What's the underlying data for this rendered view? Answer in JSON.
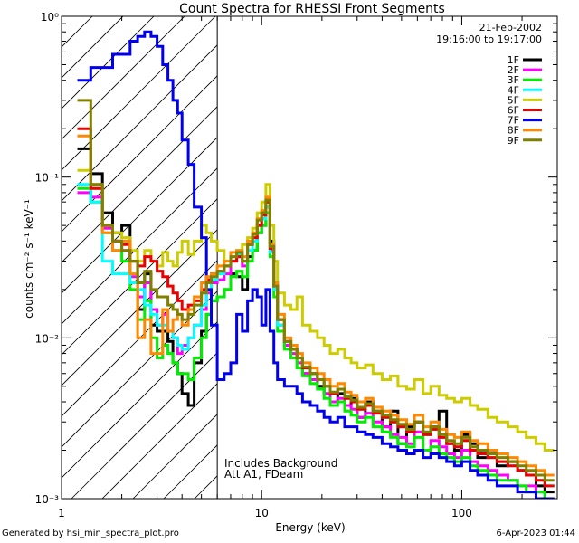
{
  "chart_data": {
    "type": "line",
    "title": "Count Spectra for RHESSI Front Segments",
    "xlabel": "Energy (keV)",
    "ylabel": "counts cm⁻² s⁻¹ keV⁻¹",
    "xscale": "log",
    "yscale": "log",
    "xlim": [
      1,
      300
    ],
    "ylim": [
      0.001,
      1
    ],
    "x_ticks": [
      {
        "value": 1,
        "label": "1"
      },
      {
        "value": 10,
        "label": "10"
      },
      {
        "value": 100,
        "label": "100"
      }
    ],
    "y_ticks": [
      {
        "value": 1,
        "label": "10⁰"
      },
      {
        "value": 0.1,
        "label": "10⁻¹"
      },
      {
        "value": 0.01,
        "label": "10⁻²"
      },
      {
        "value": 0.001,
        "label": "10⁻³"
      }
    ],
    "date": "21-Feb-2002",
    "time_range": "19:16:00 to 19:17:00",
    "hatched_region_max_keV": 6,
    "annotations": [
      "Includes Background",
      "Att A1, FDeam"
    ],
    "x_edges": [
      1.2,
      1.4,
      1.6,
      1.8,
      2.0,
      2.2,
      2.4,
      2.6,
      2.8,
      3.0,
      3.2,
      3.4,
      3.6,
      3.8,
      4.0,
      4.3,
      4.6,
      5.0,
      5.3,
      5.6,
      6.0,
      6.5,
      7.0,
      7.5,
      8.0,
      8.5,
      9.0,
      9.5,
      10.0,
      10.5,
      11.0,
      11.5,
      12.0,
      13.0,
      14.0,
      15.0,
      16.0,
      17.5,
      19.0,
      20.5,
      22.0,
      24.0,
      26.0,
      28.0,
      30.0,
      33.0,
      36.0,
      40.0,
      44.0,
      48.0,
      53.0,
      58.0,
      64.0,
      70.0,
      77.0,
      84.0,
      92.0,
      100.0,
      110.0,
      120.0,
      135.0,
      150.0,
      170.0,
      190.0,
      210.0,
      235.0,
      260.0,
      290.0
    ],
    "series": [
      {
        "name": "1F",
        "color": "#000000",
        "values": [
          0.15,
          0.105,
          0.06,
          0.045,
          0.05,
          0.03,
          0.015,
          0.025,
          0.012,
          0.011,
          0.011,
          0.0095,
          0.007,
          0.006,
          0.0045,
          0.0038,
          0.007,
          0.011,
          0.014,
          0.017,
          0.018,
          0.02,
          0.025,
          0.024,
          0.02,
          0.032,
          0.035,
          0.045,
          0.05,
          0.07,
          0.04,
          0.022,
          0.013,
          0.009,
          0.0085,
          0.0075,
          0.006,
          0.006,
          0.005,
          0.0045,
          0.004,
          0.0045,
          0.0038,
          0.0042,
          0.0032,
          0.004,
          0.0035,
          0.0028,
          0.0035,
          0.0022,
          0.0028,
          0.003,
          0.0025,
          0.0028,
          0.0035,
          0.0022,
          0.002,
          0.0025,
          0.0022,
          0.0018,
          0.002,
          0.0016,
          0.0017,
          0.0015,
          0.0014,
          0.0012,
          0.0011
        ]
      },
      {
        "name": "2F",
        "color": "#ff00ff",
        "values": [
          0.08,
          0.075,
          0.048,
          0.04,
          0.035,
          0.024,
          0.018,
          0.022,
          0.015,
          0.012,
          0.014,
          0.011,
          0.01,
          0.008,
          0.009,
          0.01,
          0.012,
          0.015,
          0.019,
          0.022,
          0.023,
          0.025,
          0.03,
          0.032,
          0.028,
          0.038,
          0.04,
          0.05,
          0.055,
          0.065,
          0.035,
          0.02,
          0.012,
          0.009,
          0.008,
          0.007,
          0.006,
          0.0055,
          0.0048,
          0.0045,
          0.004,
          0.0042,
          0.0038,
          0.0036,
          0.0032,
          0.0034,
          0.003,
          0.0028,
          0.0025,
          0.0024,
          0.0022,
          0.0026,
          0.002,
          0.0023,
          0.0021,
          0.0019,
          0.0018,
          0.002,
          0.0017,
          0.0016,
          0.0015,
          0.0014,
          0.0013,
          0.0012,
          0.0012,
          0.0011,
          0.001
        ]
      },
      {
        "name": "3F",
        "color": "#00ee00",
        "values": [
          0.085,
          0.07,
          0.045,
          0.035,
          0.03,
          0.02,
          0.013,
          0.017,
          0.01,
          0.0075,
          0.009,
          0.008,
          0.007,
          0.006,
          0.006,
          0.0055,
          0.0075,
          0.01,
          0.014,
          0.017,
          0.018,
          0.02,
          0.024,
          0.026,
          0.024,
          0.03,
          0.035,
          0.045,
          0.05,
          0.06,
          0.032,
          0.018,
          0.011,
          0.0085,
          0.0075,
          0.0065,
          0.0058,
          0.0052,
          0.0048,
          0.0042,
          0.0038,
          0.004,
          0.0035,
          0.0033,
          0.003,
          0.0032,
          0.0028,
          0.0026,
          0.0024,
          0.0022,
          0.0021,
          0.0024,
          0.002,
          0.0021,
          0.0019,
          0.0018,
          0.0017,
          0.0018,
          0.0016,
          0.0015,
          0.0014,
          0.0013,
          0.0013,
          0.0012,
          0.0011,
          0.0011,
          0.001
        ]
      },
      {
        "name": "4F",
        "color": "#00ffff",
        "values": [
          0.09,
          0.07,
          0.03,
          0.025,
          0.025,
          0.022,
          0.02,
          0.016,
          0.014,
          0.012,
          0.012,
          0.011,
          0.01,
          0.009,
          0.0085,
          0.01,
          0.012,
          0.016,
          0.02,
          0.023,
          0.025,
          0.028,
          0.03,
          0.033,
          0.03,
          0.035,
          0.04,
          0.05,
          0.055,
          0.065,
          0.034,
          0.02,
          0.012,
          0.0095,
          0.0085,
          0.0075,
          0.0065,
          0.006,
          0.0055,
          0.005,
          0.0045,
          0.0048,
          0.0042,
          0.004,
          0.0036,
          0.0038,
          0.0034,
          0.0032,
          0.003,
          0.0028,
          0.0026,
          0.003,
          0.0025,
          0.0027,
          0.0024,
          0.0022,
          0.0021,
          0.0023,
          0.002,
          0.0019,
          0.0018,
          0.0017,
          0.0016,
          0.0015,
          0.0014,
          0.0013,
          0.0012
        ]
      },
      {
        "name": "5F",
        "color": "#cccc00",
        "values": [
          0.11,
          0.085,
          0.05,
          0.045,
          0.042,
          0.035,
          0.03,
          0.035,
          0.03,
          0.028,
          0.034,
          0.03,
          0.028,
          0.034,
          0.04,
          0.033,
          0.04,
          0.05,
          0.045,
          0.04,
          0.035,
          0.03,
          0.032,
          0.035,
          0.038,
          0.042,
          0.048,
          0.06,
          0.07,
          0.09,
          0.05,
          0.03,
          0.019,
          0.016,
          0.015,
          0.018,
          0.012,
          0.011,
          0.01,
          0.009,
          0.008,
          0.0085,
          0.0075,
          0.007,
          0.0065,
          0.0068,
          0.006,
          0.0055,
          0.0058,
          0.005,
          0.0048,
          0.0055,
          0.0045,
          0.005,
          0.0044,
          0.0042,
          0.004,
          0.0042,
          0.0038,
          0.0036,
          0.0032,
          0.003,
          0.0028,
          0.0026,
          0.0024,
          0.0022,
          0.002
        ]
      },
      {
        "name": "6F",
        "color": "#ee0000",
        "values": [
          0.2,
          0.085,
          0.05,
          0.04,
          0.038,
          0.03,
          0.028,
          0.032,
          0.03,
          0.026,
          0.024,
          0.021,
          0.019,
          0.017,
          0.015,
          0.016,
          0.017,
          0.02,
          0.023,
          0.025,
          0.026,
          0.028,
          0.03,
          0.032,
          0.03,
          0.038,
          0.042,
          0.05,
          0.058,
          0.07,
          0.036,
          0.021,
          0.013,
          0.0095,
          0.0085,
          0.0075,
          0.0065,
          0.006,
          0.0055,
          0.005,
          0.0045,
          0.0048,
          0.0042,
          0.004,
          0.0036,
          0.0038,
          0.0034,
          0.0032,
          0.003,
          0.0028,
          0.0026,
          0.003,
          0.0025,
          0.0027,
          0.0024,
          0.0022,
          0.0021,
          0.0023,
          0.002,
          0.0019,
          0.0018,
          0.0017,
          0.0016,
          0.0015,
          0.0014,
          0.0013,
          0.0012
        ]
      },
      {
        "name": "7F",
        "color": "#0000ee",
        "values": [
          0.4,
          0.48,
          0.48,
          0.58,
          0.58,
          0.7,
          0.75,
          0.8,
          0.75,
          0.65,
          0.5,
          0.4,
          0.3,
          0.25,
          0.17,
          0.12,
          0.065,
          0.042,
          0.02,
          0.012,
          0.0055,
          0.006,
          0.007,
          0.014,
          0.011,
          0.017,
          0.02,
          0.018,
          0.012,
          0.02,
          0.011,
          0.007,
          0.0055,
          0.005,
          0.005,
          0.0045,
          0.004,
          0.0038,
          0.0035,
          0.0032,
          0.003,
          0.0032,
          0.0028,
          0.0028,
          0.0026,
          0.0025,
          0.0024,
          0.0022,
          0.0021,
          0.002,
          0.0019,
          0.002,
          0.0018,
          0.0019,
          0.0018,
          0.0017,
          0.0016,
          0.0017,
          0.0015,
          0.0014,
          0.0013,
          0.0012,
          0.0012,
          0.0011,
          0.0011,
          0.001,
          0.001
        ]
      },
      {
        "name": "8F",
        "color": "#ff8800",
        "values": [
          0.18,
          0.09,
          0.045,
          0.035,
          0.04,
          0.025,
          0.01,
          0.013,
          0.008,
          0.008,
          0.015,
          0.011,
          0.013,
          0.014,
          0.012,
          0.015,
          0.018,
          0.022,
          0.024,
          0.025,
          0.028,
          0.03,
          0.034,
          0.035,
          0.032,
          0.04,
          0.045,
          0.055,
          0.062,
          0.075,
          0.038,
          0.022,
          0.014,
          0.01,
          0.009,
          0.008,
          0.007,
          0.0065,
          0.006,
          0.0055,
          0.005,
          0.0052,
          0.0046,
          0.0044,
          0.004,
          0.0042,
          0.0037,
          0.0035,
          0.0033,
          0.0031,
          0.0029,
          0.0033,
          0.0028,
          0.003,
          0.0027,
          0.0025,
          0.0024,
          0.0026,
          0.0023,
          0.0022,
          0.002,
          0.0019,
          0.0018,
          0.0017,
          0.0016,
          0.0015,
          0.0014
        ]
      },
      {
        "name": "9F",
        "color": "#808000",
        "values": [
          0.3,
          0.09,
          0.05,
          0.04,
          0.035,
          0.03,
          0.022,
          0.026,
          0.02,
          0.018,
          0.018,
          0.016,
          0.015,
          0.014,
          0.013,
          0.014,
          0.016,
          0.019,
          0.022,
          0.024,
          0.026,
          0.028,
          0.032,
          0.034,
          0.03,
          0.038,
          0.044,
          0.054,
          0.06,
          0.072,
          0.037,
          0.021,
          0.013,
          0.0095,
          0.0085,
          0.0075,
          0.0066,
          0.006,
          0.0055,
          0.005,
          0.0046,
          0.0048,
          0.0043,
          0.0041,
          0.0037,
          0.0039,
          0.0035,
          0.0033,
          0.0031,
          0.0029,
          0.0027,
          0.003,
          0.0026,
          0.0028,
          0.0025,
          0.0023,
          0.0022,
          0.0024,
          0.0021,
          0.002,
          0.0019,
          0.0018,
          0.0017,
          0.0016,
          0.0015,
          0.0014,
          0.0013
        ]
      }
    ]
  },
  "footer": {
    "left": "Generated by hsi_min_spectra_plot.pro",
    "right": "6-Apr-2023 01:44"
  }
}
